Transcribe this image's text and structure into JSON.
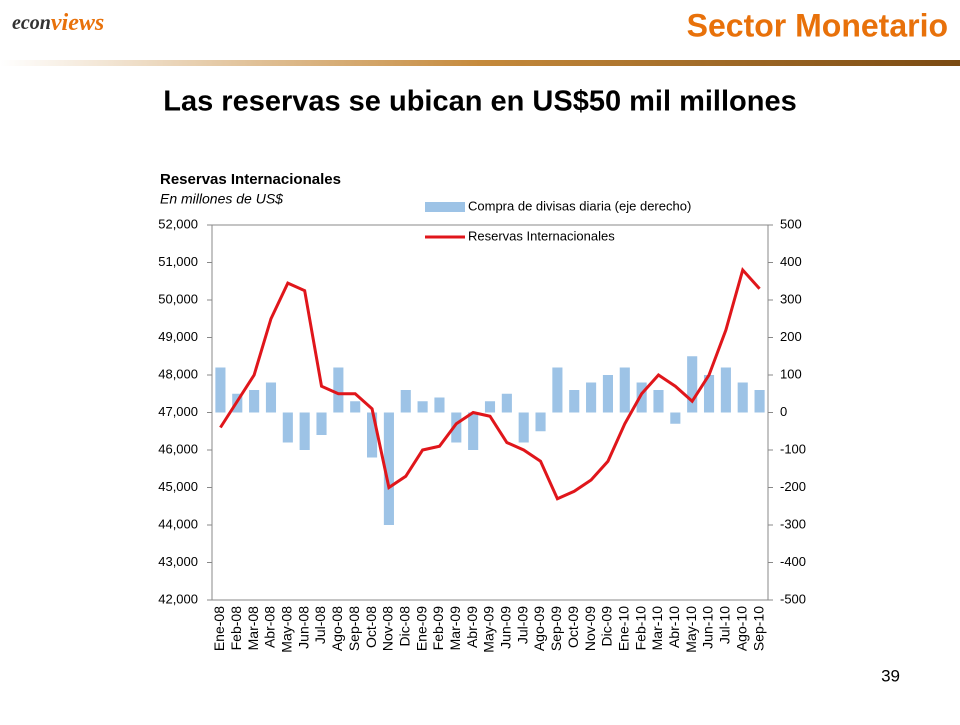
{
  "header": {
    "logo_prefix": "econ",
    "logo_suffix": "views",
    "section": "Sector Monetario"
  },
  "title": "Las reservas se ubican en US$50 mil millones",
  "page_number": "39",
  "chart_data": {
    "type": "combo",
    "title": "Reservas Internacionales",
    "subtitle": "En millones de US$",
    "categories": [
      "Ene-08",
      "Feb-08",
      "Mar-08",
      "Abr-08",
      "May-08",
      "Jun-08",
      "Jul-08",
      "Ago-08",
      "Sep-08",
      "Oct-08",
      "Nov-08",
      "Dic-08",
      "Ene-09",
      "Feb-09",
      "Mar-09",
      "Abr-09",
      "May-09",
      "Jun-09",
      "Jul-09",
      "Ago-09",
      "Sep-09",
      "Oct-09",
      "Nov-09",
      "Dic-09",
      "Ene-10",
      "Feb-10",
      "Mar-10",
      "Abr-10",
      "May-10",
      "Jun-10",
      "Jul-10",
      "Ago-10",
      "Sep-10"
    ],
    "series": [
      {
        "name": "Compra de divisas diaria (eje derecho)",
        "type": "bar",
        "axis": "y2",
        "color": "#9dc3e6",
        "values": [
          120,
          50,
          60,
          80,
          -80,
          -100,
          -60,
          120,
          30,
          -120,
          -300,
          60,
          30,
          40,
          -80,
          -100,
          30,
          50,
          -80,
          -50,
          120,
          60,
          80,
          100,
          120,
          80,
          60,
          -30,
          150,
          100,
          120,
          80,
          60
        ]
      },
      {
        "name": "Reservas Internacionales",
        "type": "line",
        "color": "#e0161b",
        "values": [
          46600,
          47300,
          48000,
          49500,
          50450,
          50250,
          47700,
          47500,
          47500,
          47100,
          45000,
          45300,
          46000,
          46100,
          46700,
          47000,
          46900,
          46200,
          46000,
          45700,
          44700,
          44900,
          45200,
          45700,
          46700,
          47500,
          48000,
          47700,
          47300,
          48000,
          49200,
          50800,
          50300
        ]
      }
    ],
    "ylim": [
      42000,
      52000
    ],
    "yticks": [
      {
        "value": 42000,
        "label": "42,000"
      },
      {
        "value": 43000,
        "label": "43,000"
      },
      {
        "value": 44000,
        "label": "44,000"
      },
      {
        "value": 45000,
        "label": "45,000"
      },
      {
        "value": 46000,
        "label": "46,000"
      },
      {
        "value": 47000,
        "label": "47,000"
      },
      {
        "value": 48000,
        "label": "48,000"
      },
      {
        "value": 49000,
        "label": "49,000"
      },
      {
        "value": 50000,
        "label": "50,000"
      },
      {
        "value": 51000,
        "label": "51,000"
      },
      {
        "value": 52000,
        "label": "52,000"
      }
    ],
    "y2lim": [
      -500,
      500
    ],
    "y2ticks": [
      -500,
      -400,
      -300,
      -200,
      -100,
      0,
      100,
      200,
      300,
      400,
      500
    ],
    "grid": false
  }
}
